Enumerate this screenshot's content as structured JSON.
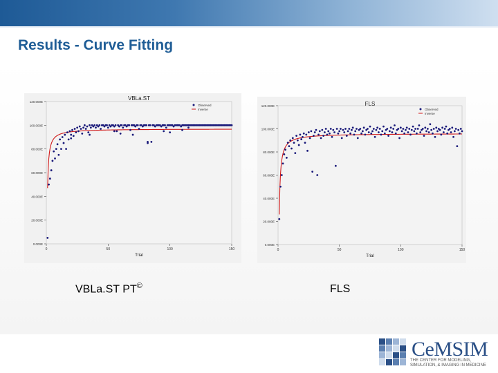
{
  "slide": {
    "title": "Results - Curve Fitting",
    "captions": {
      "left": "VBLa.ST PT",
      "left_mark": "©",
      "right": "FLS"
    }
  },
  "logo": {
    "text": "CeMSIM",
    "tagline": "THE CENTER FOR MODELING, SIMULATION, & IMAGING IN MEDICINE"
  },
  "colors": {
    "title": "#1f5d96",
    "observed": "#1a1a7a",
    "fit": "#d01818",
    "accent": "#1e5a96"
  },
  "chart_data": [
    {
      "type": "scatter",
      "title": "VBLa.ST",
      "xlabel": "Trial",
      "ylabel": "",
      "xlim": [
        0,
        150
      ],
      "ylim": [
        0,
        120
      ],
      "x_ticks": [
        "0",
        "50",
        "100",
        "150"
      ],
      "y_ticks": [
        "0.000E",
        "20.000E",
        "40.000E",
        "60.000E",
        "80.000E",
        "100.000E",
        "120.000E"
      ],
      "legend": [
        "Observed",
        "Inverse"
      ],
      "legend_position": "top-right",
      "fit_asymptote": 97,
      "fit_coefficient": 50,
      "observed": [
        [
          1,
          5
        ],
        [
          2,
          50
        ],
        [
          3,
          55
        ],
        [
          4,
          62
        ],
        [
          5,
          70
        ],
        [
          6,
          78
        ],
        [
          7,
          72
        ],
        [
          8,
          80
        ],
        [
          9,
          84
        ],
        [
          10,
          75
        ],
        [
          11,
          88
        ],
        [
          12,
          80
        ],
        [
          13,
          90
        ],
        [
          14,
          85
        ],
        [
          15,
          92
        ],
        [
          16,
          80
        ],
        [
          17,
          94
        ],
        [
          18,
          88
        ],
        [
          19,
          95
        ],
        [
          20,
          92
        ],
        [
          21,
          96
        ],
        [
          22,
          91
        ],
        [
          23,
          97
        ],
        [
          24,
          94
        ],
        [
          25,
          98
        ],
        [
          26,
          95
        ],
        [
          27,
          99
        ],
        [
          28,
          97
        ],
        [
          29,
          93
        ],
        [
          30,
          98
        ],
        [
          31,
          100
        ],
        [
          32,
          97
        ],
        [
          33,
          99
        ],
        [
          34,
          94
        ],
        [
          35,
          100
        ],
        [
          36,
          98
        ],
        [
          37,
          100
        ],
        [
          38,
          99
        ],
        [
          39,
          100
        ],
        [
          40,
          98
        ],
        [
          41,
          100
        ],
        [
          42,
          99
        ],
        [
          43,
          100
        ],
        [
          44,
          97
        ],
        [
          45,
          100
        ],
        [
          46,
          100
        ],
        [
          47,
          99
        ],
        [
          48,
          100
        ],
        [
          49,
          100
        ],
        [
          50,
          98
        ],
        [
          51,
          100
        ],
        [
          52,
          99
        ],
        [
          53,
          100
        ],
        [
          54,
          100
        ],
        [
          55,
          99
        ],
        [
          56,
          100
        ],
        [
          57,
          95
        ],
        [
          58,
          100
        ],
        [
          59,
          99
        ],
        [
          60,
          100
        ],
        [
          61,
          100
        ],
        [
          62,
          98
        ],
        [
          63,
          100
        ],
        [
          64,
          100
        ],
        [
          65,
          99
        ],
        [
          66,
          100
        ],
        [
          67,
          100
        ],
        [
          68,
          96
        ],
        [
          69,
          100
        ],
        [
          70,
          100
        ],
        [
          71,
          100
        ],
        [
          72,
          99
        ],
        [
          73,
          100
        ],
        [
          74,
          100
        ],
        [
          75,
          97
        ],
        [
          76,
          100
        ],
        [
          77,
          100
        ],
        [
          78,
          99
        ],
        [
          79,
          100
        ],
        [
          80,
          100
        ],
        [
          81,
          100
        ],
        [
          82,
          85
        ],
        [
          83,
          100
        ],
        [
          84,
          100
        ],
        [
          85,
          86
        ],
        [
          86,
          100
        ],
        [
          87,
          100
        ],
        [
          88,
          99
        ],
        [
          89,
          100
        ],
        [
          90,
          100
        ],
        [
          91,
          100
        ],
        [
          92,
          100
        ],
        [
          93,
          99
        ],
        [
          94,
          100
        ],
        [
          95,
          100
        ],
        [
          96,
          100
        ],
        [
          97,
          98
        ],
        [
          98,
          100
        ],
        [
          99,
          100
        ],
        [
          100,
          100
        ],
        [
          101,
          100
        ],
        [
          102,
          100
        ],
        [
          103,
          99
        ],
        [
          104,
          100
        ],
        [
          105,
          100
        ],
        [
          106,
          100
        ],
        [
          107,
          100
        ],
        [
          108,
          100
        ],
        [
          109,
          99
        ],
        [
          110,
          100
        ],
        [
          111,
          100
        ],
        [
          112,
          100
        ],
        [
          113,
          100
        ],
        [
          114,
          100
        ],
        [
          115,
          100
        ],
        [
          116,
          100
        ],
        [
          117,
          100
        ],
        [
          118,
          100
        ],
        [
          119,
          100
        ],
        [
          120,
          100
        ],
        [
          121,
          100
        ],
        [
          122,
          100
        ],
        [
          123,
          100
        ],
        [
          124,
          100
        ],
        [
          125,
          100
        ],
        [
          126,
          100
        ],
        [
          127,
          100
        ],
        [
          128,
          100
        ],
        [
          129,
          100
        ],
        [
          130,
          100
        ],
        [
          131,
          100
        ],
        [
          132,
          100
        ],
        [
          133,
          100
        ],
        [
          134,
          100
        ],
        [
          135,
          100
        ],
        [
          136,
          100
        ],
        [
          137,
          100
        ],
        [
          138,
          100
        ],
        [
          139,
          100
        ],
        [
          140,
          100
        ],
        [
          141,
          100
        ],
        [
          142,
          100
        ],
        [
          143,
          100
        ],
        [
          144,
          100
        ],
        [
          145,
          100
        ],
        [
          146,
          100
        ],
        [
          147,
          100
        ],
        [
          148,
          100
        ],
        [
          149,
          100
        ],
        [
          150,
          100
        ],
        [
          20,
          89
        ],
        [
          35,
          92
        ],
        [
          55,
          95
        ],
        [
          60,
          93
        ],
        [
          70,
          92
        ],
        [
          82,
          86
        ],
        [
          95,
          95
        ],
        [
          100,
          94
        ],
        [
          110,
          96
        ],
        [
          115,
          98
        ]
      ]
    },
    {
      "type": "scatter",
      "title": "FLS",
      "xlabel": "Trial",
      "ylabel": "",
      "xlim": [
        0,
        150
      ],
      "ylim": [
        0,
        120
      ],
      "x_ticks": [
        "0",
        "50",
        "100",
        "150"
      ],
      "y_ticks": [
        "0.000E",
        "20.000E",
        "40.000E",
        "60.000E",
        "80.000E",
        "100.000E",
        "120.000E"
      ],
      "legend": [
        "Observed",
        "Inverse"
      ],
      "legend_position": "top-right",
      "fit_asymptote": 96,
      "fit_coefficient": 70,
      "observed": [
        [
          1,
          22
        ],
        [
          2,
          50
        ],
        [
          3,
          60
        ],
        [
          4,
          70
        ],
        [
          5,
          78
        ],
        [
          6,
          82
        ],
        [
          7,
          75
        ],
        [
          8,
          88
        ],
        [
          9,
          85
        ],
        [
          10,
          90
        ],
        [
          11,
          83
        ],
        [
          12,
          92
        ],
        [
          13,
          88
        ],
        [
          14,
          79
        ],
        [
          15,
          94
        ],
        [
          16,
          90
        ],
        [
          17,
          86
        ],
        [
          18,
          95
        ],
        [
          19,
          91
        ],
        [
          20,
          93
        ],
        [
          21,
          96
        ],
        [
          22,
          88
        ],
        [
          23,
          95
        ],
        [
          24,
          81
        ],
        [
          25,
          97
        ],
        [
          26,
          92
        ],
        [
          27,
          98
        ],
        [
          28,
          63
        ],
        [
          29,
          94
        ],
        [
          30,
          97
        ],
        [
          31,
          99
        ],
        [
          32,
          60
        ],
        [
          33,
          95
        ],
        [
          34,
          98
        ],
        [
          35,
          92
        ],
        [
          36,
          99
        ],
        [
          37,
          94
        ],
        [
          38,
          97
        ],
        [
          39,
          100
        ],
        [
          40,
          95
        ],
        [
          41,
          98
        ],
        [
          42,
          96
        ],
        [
          43,
          100
        ],
        [
          44,
          93
        ],
        [
          45,
          99
        ],
        [
          46,
          97
        ],
        [
          47,
          68
        ],
        [
          48,
          100
        ],
        [
          49,
          96
        ],
        [
          50,
          98
        ],
        [
          51,
          100
        ],
        [
          52,
          92
        ],
        [
          53,
          99
        ],
        [
          54,
          97
        ],
        [
          55,
          100
        ],
        [
          56,
          94
        ],
        [
          57,
          98
        ],
        [
          58,
          100
        ],
        [
          59,
          96
        ],
        [
          60,
          99
        ],
        [
          61,
          101
        ],
        [
          62,
          95
        ],
        [
          63,
          98
        ],
        [
          64,
          100
        ],
        [
          65,
          92
        ],
        [
          66,
          99
        ],
        [
          67,
          100
        ],
        [
          68,
          96
        ],
        [
          69,
          98
        ],
        [
          70,
          101
        ],
        [
          71,
          95
        ],
        [
          72,
          99
        ],
        [
          73,
          100
        ],
        [
          74,
          97
        ],
        [
          75,
          102
        ],
        [
          76,
          96
        ],
        [
          77,
          98
        ],
        [
          78,
          100
        ],
        [
          79,
          93
        ],
        [
          80,
          99
        ],
        [
          81,
          101
        ],
        [
          82,
          97
        ],
        [
          83,
          100
        ],
        [
          84,
          95
        ],
        [
          85,
          98
        ],
        [
          86,
          102
        ],
        [
          87,
          96
        ],
        [
          88,
          99
        ],
        [
          89,
          100
        ],
        [
          90,
          94
        ],
        [
          91,
          98
        ],
        [
          92,
          101
        ],
        [
          93,
          97
        ],
        [
          94,
          100
        ],
        [
          95,
          103
        ],
        [
          96,
          96
        ],
        [
          97,
          99
        ],
        [
          98,
          100
        ],
        [
          99,
          92
        ],
        [
          100,
          101
        ],
        [
          101,
          98
        ],
        [
          102,
          100
        ],
        [
          103,
          96
        ],
        [
          104,
          99
        ],
        [
          105,
          101
        ],
        [
          106,
          97
        ],
        [
          107,
          100
        ],
        [
          108,
          95
        ],
        [
          109,
          99
        ],
        [
          110,
          102
        ],
        [
          111,
          98
        ],
        [
          112,
          100
        ],
        [
          113,
          96
        ],
        [
          114,
          100
        ],
        [
          115,
          103
        ],
        [
          116,
          97
        ],
        [
          117,
          99
        ],
        [
          118,
          100
        ],
        [
          119,
          94
        ],
        [
          120,
          101
        ],
        [
          121,
          98
        ],
        [
          122,
          100
        ],
        [
          123,
          97
        ],
        [
          124,
          104
        ],
        [
          125,
          99
        ],
        [
          126,
          96
        ],
        [
          127,
          100
        ],
        [
          128,
          93
        ],
        [
          129,
          101
        ],
        [
          130,
          98
        ],
        [
          131,
          100
        ],
        [
          132,
          99
        ],
        [
          133,
          95
        ],
        [
          134,
          101
        ],
        [
          135,
          97
        ],
        [
          136,
          100
        ],
        [
          137,
          102
        ],
        [
          138,
          96
        ],
        [
          139,
          99
        ],
        [
          140,
          100
        ],
        [
          141,
          97
        ],
        [
          142,
          101
        ],
        [
          143,
          93
        ],
        [
          144,
          98
        ],
        [
          145,
          100
        ],
        [
          146,
          85
        ],
        [
          147,
          99
        ],
        [
          148,
          96
        ],
        [
          149,
          100
        ],
        [
          150,
          98
        ]
      ]
    }
  ]
}
